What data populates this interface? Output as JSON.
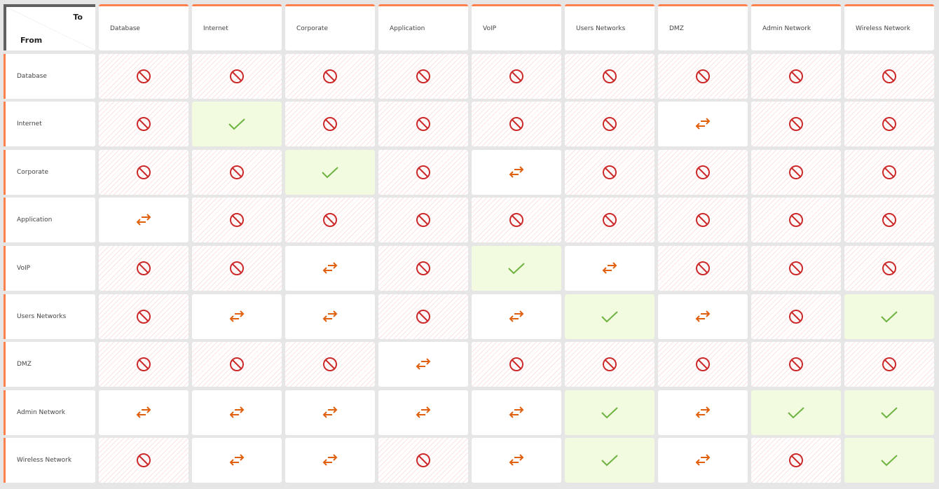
{
  "corner": {
    "to_label": "To",
    "from_label": "From"
  },
  "zones": [
    "Database",
    "Internet",
    "Corporate",
    "Application",
    "VoIP",
    "Users Networks",
    "DMZ",
    "Admin Network",
    "Wireless Network"
  ],
  "legend_codes": {
    "D": "deny",
    "A": "allow",
    "B": "bidirectional"
  },
  "colors": {
    "accent": "#ff7f4d",
    "deny": "#cc2a2a",
    "allow": "#6db33f",
    "bidirectional": "#e0600e",
    "allow_bg": "#f2fadf"
  },
  "icons": {
    "deny": "prohibited-icon",
    "allow": "checkmark-icon",
    "bidirectional": "bidirectional-arrows-icon"
  },
  "matrix": [
    [
      "D",
      "D",
      "D",
      "D",
      "D",
      "D",
      "D",
      "D",
      "D"
    ],
    [
      "D",
      "A",
      "D",
      "D",
      "D",
      "D",
      "B",
      "D",
      "D"
    ],
    [
      "D",
      "D",
      "A",
      "D",
      "B",
      "D",
      "D",
      "D",
      "D"
    ],
    [
      "B",
      "D",
      "D",
      "D",
      "D",
      "D",
      "D",
      "D",
      "D"
    ],
    [
      "D",
      "D",
      "B",
      "D",
      "A",
      "B",
      "D",
      "D",
      "D"
    ],
    [
      "D",
      "B",
      "B",
      "D",
      "B",
      "A",
      "B",
      "D",
      "A"
    ],
    [
      "D",
      "D",
      "D",
      "B",
      "D",
      "D",
      "D",
      "D",
      "D"
    ],
    [
      "B",
      "B",
      "B",
      "B",
      "B",
      "A",
      "B",
      "A",
      "A"
    ],
    [
      "D",
      "B",
      "B",
      "D",
      "B",
      "A",
      "B",
      "D",
      "A"
    ]
  ]
}
